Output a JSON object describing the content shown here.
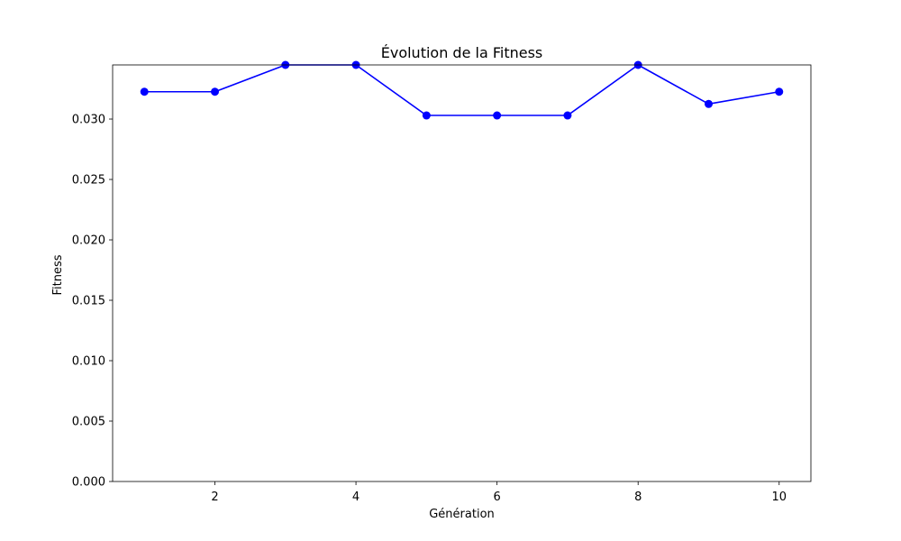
{
  "chart_data": {
    "type": "line",
    "title": "Évolution de la Fitness",
    "xlabel": "Génération",
    "ylabel": "Fitness",
    "x": [
      1,
      2,
      3,
      4,
      5,
      6,
      7,
      8,
      9,
      10
    ],
    "series": [
      {
        "values": [
          0.03226,
          0.03226,
          0.03448,
          0.03448,
          0.0303,
          0.0303,
          0.0303,
          0.03448,
          0.03125,
          0.03226
        ],
        "color": "#0000ff",
        "marker": "circle"
      }
    ],
    "xlim": [
      0.55,
      10.45
    ],
    "ylim": [
      0,
      0.03448
    ],
    "xticks": [
      2,
      4,
      6,
      8,
      10
    ],
    "xtick_labels": [
      "2",
      "4",
      "6",
      "8",
      "10"
    ],
    "yticks": [
      0,
      0.005,
      0.01,
      0.015,
      0.02,
      0.025,
      0.03
    ],
    "ytick_labels": [
      "0.000",
      "0.005",
      "0.010",
      "0.015",
      "0.020",
      "0.025",
      "0.030"
    ],
    "grid": false,
    "legend": "none"
  }
}
